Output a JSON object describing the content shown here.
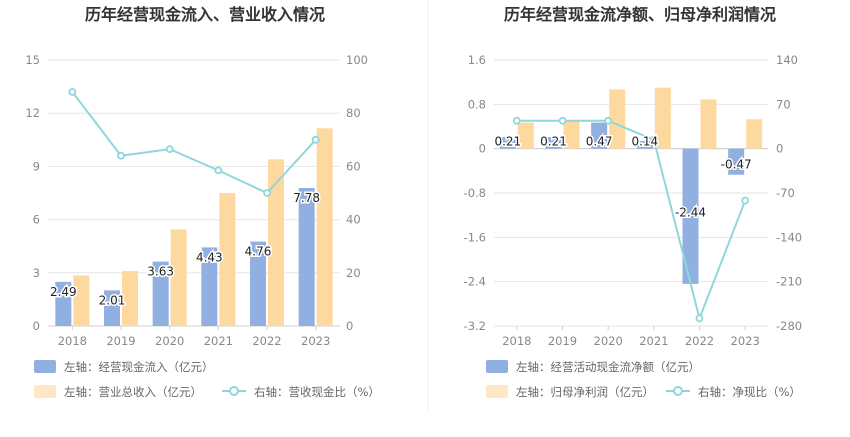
{
  "colors": {
    "bar_blue": "#8fb0e0",
    "bar_orange": "#fdd9a0",
    "line": "#8fd7db"
  },
  "chart_data": [
    {
      "type": "bar+line",
      "title": "历年经营现金流入、营业收入情况",
      "categories": [
        "2018",
        "2019",
        "2020",
        "2021",
        "2022",
        "2023"
      ],
      "left_axis": {
        "ticks": [
          "0",
          "3",
          "6",
          "9",
          "12",
          "15"
        ],
        "ylim": [
          0,
          15
        ]
      },
      "right_axis": {
        "ticks": [
          "0",
          "20",
          "40",
          "60",
          "80",
          "100"
        ],
        "ylim": [
          0,
          100
        ]
      },
      "series": [
        {
          "name": "左轴：经营现金流入（亿元）",
          "type": "bar",
          "axis": "left",
          "values": [
            2.49,
            2.01,
            3.63,
            4.43,
            4.76,
            7.78
          ],
          "labels": [
            "2.49",
            "2.01",
            "3.63",
            "4.43",
            "4.76",
            "7.78"
          ]
        },
        {
          "name": "左轴：营业总收入（亿元）",
          "type": "bar",
          "axis": "left",
          "values": [
            2.85,
            3.1,
            5.45,
            7.5,
            9.4,
            11.15
          ]
        },
        {
          "name": "右轴：营收现金比（%）",
          "type": "line",
          "axis": "right",
          "values": [
            88,
            64,
            66.5,
            58.5,
            50,
            70
          ]
        }
      ]
    },
    {
      "type": "bar+line",
      "title": "历年经营现金流净额、归母净利润情况",
      "categories": [
        "2018",
        "2019",
        "2020",
        "2021",
        "2022",
        "2023"
      ],
      "left_axis": {
        "ticks": [
          "-3.2",
          "-2.4",
          "-1.6",
          "-0.8",
          "0",
          "0.8",
          "1.6"
        ],
        "ylim": [
          -3.2,
          1.6
        ]
      },
      "right_axis": {
        "ticks": [
          "-280",
          "-210",
          "-140",
          "-70",
          "0",
          "70",
          "140"
        ],
        "ylim": [
          -280,
          140
        ]
      },
      "series": [
        {
          "name": "左轴：经营活动现金流净额（亿元）",
          "type": "bar",
          "axis": "left",
          "values": [
            0.21,
            0.21,
            0.47,
            0.14,
            -2.44,
            -0.47
          ],
          "labels": [
            "0.21",
            "0.21",
            "0.47",
            "0.14",
            "-2.44",
            "-0.47"
          ]
        },
        {
          "name": "左轴：归母净利润（亿元）",
          "type": "bar",
          "axis": "left",
          "values": [
            0.47,
            0.49,
            1.07,
            1.1,
            0.89,
            0.53
          ]
        },
        {
          "name": "右轴：净现比（%）",
          "type": "line",
          "axis": "right",
          "values": [
            44,
            44,
            44,
            14,
            -268,
            -82
          ]
        }
      ]
    }
  ]
}
